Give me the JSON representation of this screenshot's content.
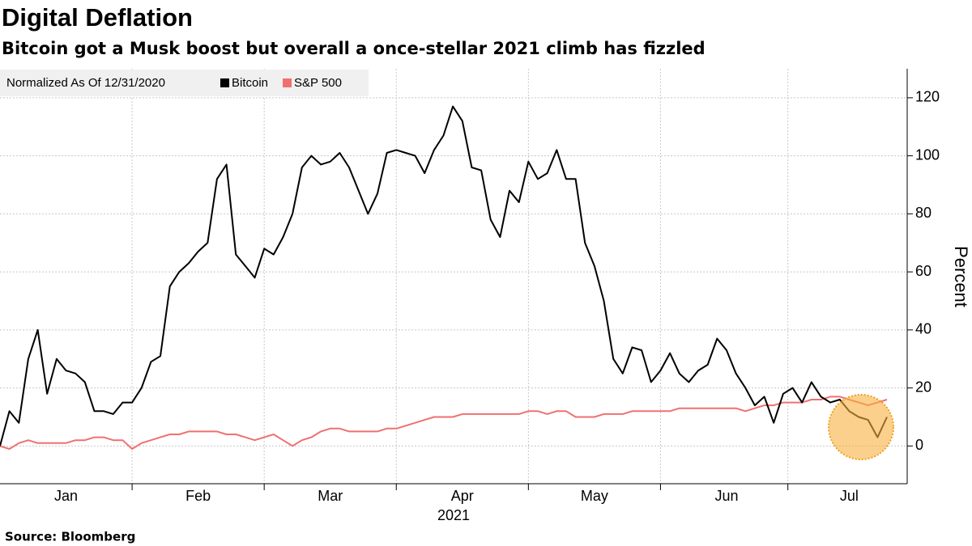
{
  "chart_data": {
    "type": "line",
    "title": "Digital Deflation",
    "subtitle": "Bitcoin got a Musk boost but overall a once-stellar 2021 climb has fizzled",
    "legend_title": "Normalized As Of 12/31/2020",
    "y_axis_label": "Percent",
    "x_axis_label": "2021",
    "source": "Source: Bloomberg",
    "categories": [
      null,
      null,
      null,
      null,
      null,
      null,
      null,
      "Jan",
      null,
      null,
      null,
      null,
      null,
      null,
      null,
      null,
      null,
      null,
      null,
      null,
      null,
      "Feb",
      null,
      null,
      null,
      null,
      null,
      null,
      null,
      null,
      null,
      null,
      null,
      null,
      null,
      "Mar",
      null,
      null,
      null,
      null,
      null,
      null,
      null,
      null,
      null,
      null,
      null,
      null,
      null,
      "Apr",
      null,
      null,
      null,
      null,
      null,
      null,
      null,
      null,
      null,
      null,
      null,
      null,
      null,
      "May",
      null,
      null,
      null,
      null,
      null,
      null,
      null,
      null,
      null,
      null,
      null,
      null,
      null,
      "Jun",
      null,
      null,
      null,
      null,
      null,
      null,
      null,
      null,
      null,
      null,
      null,
      null,
      "Jul",
      null,
      null,
      null,
      null
    ],
    "series": [
      {
        "name": "Bitcoin",
        "color": "#000000",
        "values": [
          0,
          12,
          8,
          30,
          40,
          18,
          30,
          26,
          25,
          22,
          12,
          12,
          11,
          15,
          15,
          20,
          29,
          31,
          55,
          60,
          63,
          67,
          70,
          92,
          97,
          66,
          62,
          58,
          68,
          66,
          72,
          80,
          96,
          100,
          97,
          98,
          101,
          96,
          88,
          80,
          87,
          101,
          102,
          101,
          100,
          94,
          102,
          107,
          117,
          112,
          96,
          95,
          78,
          72,
          88,
          84,
          98,
          92,
          94,
          102,
          92,
          92,
          70,
          62,
          50,
          30,
          25,
          34,
          33,
          22,
          26,
          32,
          25,
          22,
          26,
          28,
          37,
          33,
          25,
          20,
          14,
          17,
          8,
          18,
          20,
          15,
          22,
          17,
          15,
          16,
          12,
          10,
          9,
          3,
          10
        ]
      },
      {
        "name": "S&P 500",
        "color": "#f07070",
        "values": [
          0,
          -1,
          1,
          2,
          1,
          1,
          1,
          1,
          2,
          2,
          3,
          3,
          2,
          2,
          -1,
          1,
          2,
          3,
          4,
          4,
          5,
          5,
          5,
          5,
          4,
          4,
          3,
          2,
          3,
          4,
          2,
          0,
          2,
          3,
          5,
          6,
          6,
          5,
          5,
          5,
          5,
          6,
          6,
          7,
          8,
          9,
          10,
          10,
          10,
          11,
          11,
          11,
          11,
          11,
          11,
          11,
          12,
          12,
          11,
          12,
          12,
          10,
          10,
          10,
          11,
          11,
          11,
          12,
          12,
          12,
          12,
          12,
          13,
          13,
          13,
          13,
          13,
          13,
          13,
          12,
          13,
          14,
          14,
          15,
          15,
          15,
          16,
          16,
          17,
          17,
          16,
          15,
          14,
          15,
          16
        ]
      }
    ],
    "ylim": [
      -13,
      130
    ],
    "yticks": [
      0,
      20,
      40,
      60,
      80,
      100,
      120
    ],
    "grid": true
  }
}
